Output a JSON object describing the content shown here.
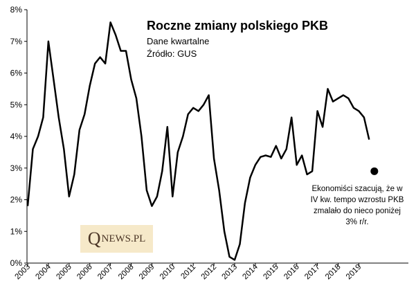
{
  "chart_data": {
    "type": "line",
    "title": "Roczne zmiany polskiego PKB",
    "subtitle": "Dane kwartalne",
    "source": "Źródło: GUS",
    "xlabel": "",
    "ylabel": "",
    "grid": false,
    "ylim": [
      0,
      8
    ],
    "y_ticks": [
      "0%",
      "1%",
      "2%",
      "3%",
      "4%",
      "5%",
      "6%",
      "7%",
      "8%"
    ],
    "x_ticks": [
      "2003",
      "2004",
      "2005",
      "2006",
      "2007",
      "2008",
      "2009",
      "2010",
      "2011",
      "2012",
      "2013",
      "2014",
      "2015",
      "2016",
      "2017",
      "2018",
      "2019"
    ],
    "x_start": 2003,
    "x": [
      "2003 Q1",
      "2003 Q2",
      "2003 Q3",
      "2003 Q4",
      "2004 Q1",
      "2004 Q2",
      "2004 Q3",
      "2004 Q4",
      "2005 Q1",
      "2005 Q2",
      "2005 Q3",
      "2005 Q4",
      "2006 Q1",
      "2006 Q2",
      "2006 Q3",
      "2006 Q4",
      "2007 Q1",
      "2007 Q2",
      "2007 Q3",
      "2007 Q4",
      "2008 Q1",
      "2008 Q2",
      "2008 Q3",
      "2008 Q4",
      "2009 Q1",
      "2009 Q2",
      "2009 Q3",
      "2009 Q4",
      "2010 Q1",
      "2010 Q2",
      "2010 Q3",
      "2010 Q4",
      "2011 Q1",
      "2011 Q2",
      "2011 Q3",
      "2011 Q4",
      "2012 Q1",
      "2012 Q2",
      "2012 Q3",
      "2012 Q4",
      "2013 Q1",
      "2013 Q2",
      "2013 Q3",
      "2013 Q4",
      "2014 Q1",
      "2014 Q2",
      "2014 Q3",
      "2014 Q4",
      "2015 Q1",
      "2015 Q2",
      "2015 Q3",
      "2015 Q4",
      "2016 Q1",
      "2016 Q2",
      "2016 Q3",
      "2016 Q4",
      "2017 Q1",
      "2017 Q2",
      "2017 Q3",
      "2017 Q4",
      "2018 Q1",
      "2018 Q2",
      "2018 Q3",
      "2018 Q4",
      "2019 Q1",
      "2019 Q2",
      "2019 Q3"
    ],
    "values": [
      1.8,
      3.6,
      4.0,
      4.6,
      7.0,
      5.8,
      4.6,
      3.6,
      2.1,
      2.8,
      4.2,
      4.7,
      5.6,
      6.3,
      6.5,
      6.3,
      7.6,
      7.2,
      6.7,
      6.7,
      5.8,
      5.2,
      4.0,
      2.3,
      1.8,
      2.1,
      2.9,
      4.3,
      2.1,
      3.5,
      4.0,
      4.7,
      4.9,
      4.8,
      5.0,
      5.3,
      3.3,
      2.3,
      1.0,
      0.2,
      0.1,
      0.6,
      1.9,
      2.7,
      3.1,
      3.35,
      3.4,
      3.35,
      3.7,
      3.3,
      3.6,
      4.6,
      3.1,
      3.4,
      2.8,
      2.9,
      4.8,
      4.3,
      5.5,
      5.1,
      5.2,
      5.3,
      5.2,
      4.9,
      4.8,
      4.6,
      3.9
    ],
    "forecast_point": {
      "x": "2019 Q4",
      "y": 2.9
    },
    "annotation": "Ekonomiści szacują, że w IV kw. tempo wzrostu PKB zmalało do nieco poniżej 3% r/r.",
    "line_color": "#000000"
  },
  "logo": {
    "q": "Q",
    "rest": "NEWS.PL"
  }
}
